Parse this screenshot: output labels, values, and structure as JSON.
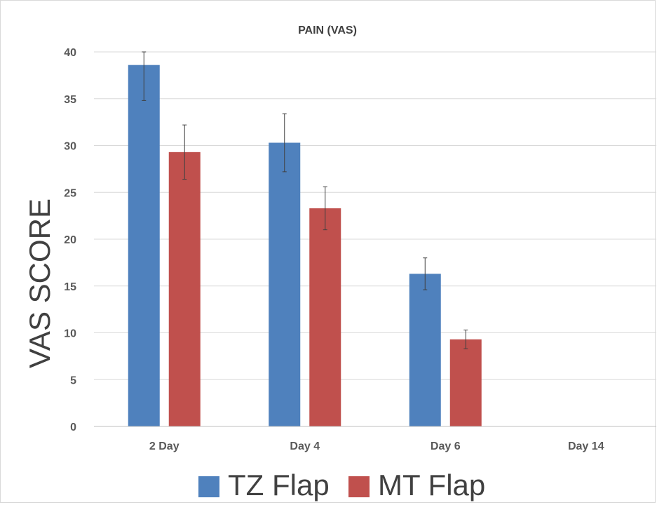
{
  "chart_data": {
    "type": "bar",
    "title": "PAIN (VAS)",
    "xlabel": "",
    "ylabel": "VAS SCORE",
    "ylim": [
      0,
      40
    ],
    "yticks": [
      0,
      5,
      10,
      15,
      20,
      25,
      30,
      35,
      40
    ],
    "grid": true,
    "legend_position": "bottom",
    "categories": [
      "2 Day",
      "Day 4",
      "Day 6",
      "Day 14"
    ],
    "series": [
      {
        "name": "TZ Flap",
        "color": "#4f81bd",
        "values": [
          38.6,
          30.3,
          16.3,
          0
        ],
        "errors": [
          3.8,
          3.1,
          1.7,
          0
        ]
      },
      {
        "name": "MT Flap",
        "color": "#c0504d",
        "values": [
          29.3,
          23.3,
          9.3,
          0
        ],
        "errors": [
          2.9,
          2.3,
          1.0,
          0
        ]
      }
    ]
  }
}
